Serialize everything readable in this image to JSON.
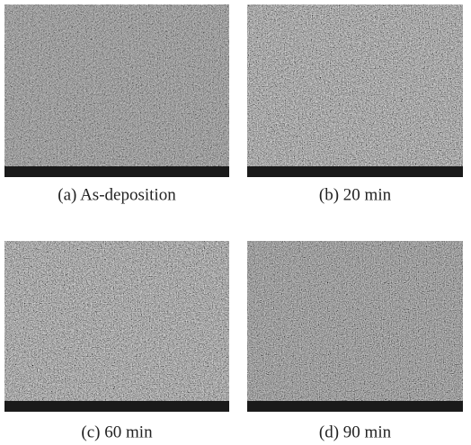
{
  "panels": [
    {
      "caption": "(a) As-deposition"
    },
    {
      "caption": "(b) 20 min"
    },
    {
      "caption": "(c) 60 min"
    },
    {
      "caption": "(d) 90 min"
    }
  ]
}
